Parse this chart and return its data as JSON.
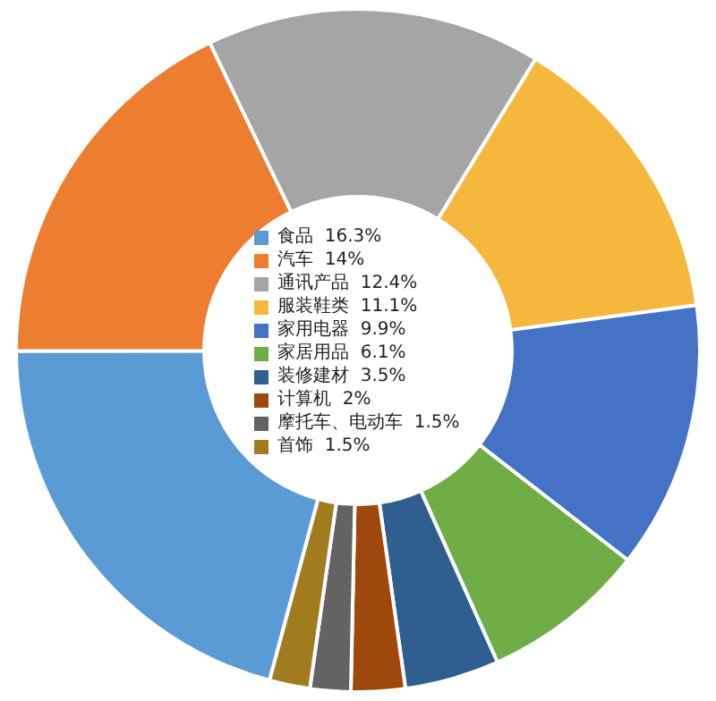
{
  "chart_data": {
    "type": "donut",
    "categories": [
      "食品",
      "汽车",
      "通讯产品",
      "服装鞋类",
      "家用电器",
      "家居用品",
      "装修建材",
      "计算机",
      "摩托车、电动车",
      "首饰"
    ],
    "values": [
      16.3,
      14,
      12.4,
      11.1,
      9.9,
      6.1,
      3.5,
      2,
      1.5,
      1.5
    ],
    "value_labels": [
      "16.3%",
      "14%",
      "12.4%",
      "11.1%",
      "9.9%",
      "6.1%",
      "3.5%",
      "2%",
      "1.5%",
      "1.5%"
    ],
    "colors": [
      "#5b9bd5",
      "#ed7d31",
      "#a5a5a5",
      "#f5b83d",
      "#4472c4",
      "#70ad47",
      "#2f5f8f",
      "#9e480e",
      "#636363",
      "#a07c1e"
    ],
    "legend": "center"
  }
}
